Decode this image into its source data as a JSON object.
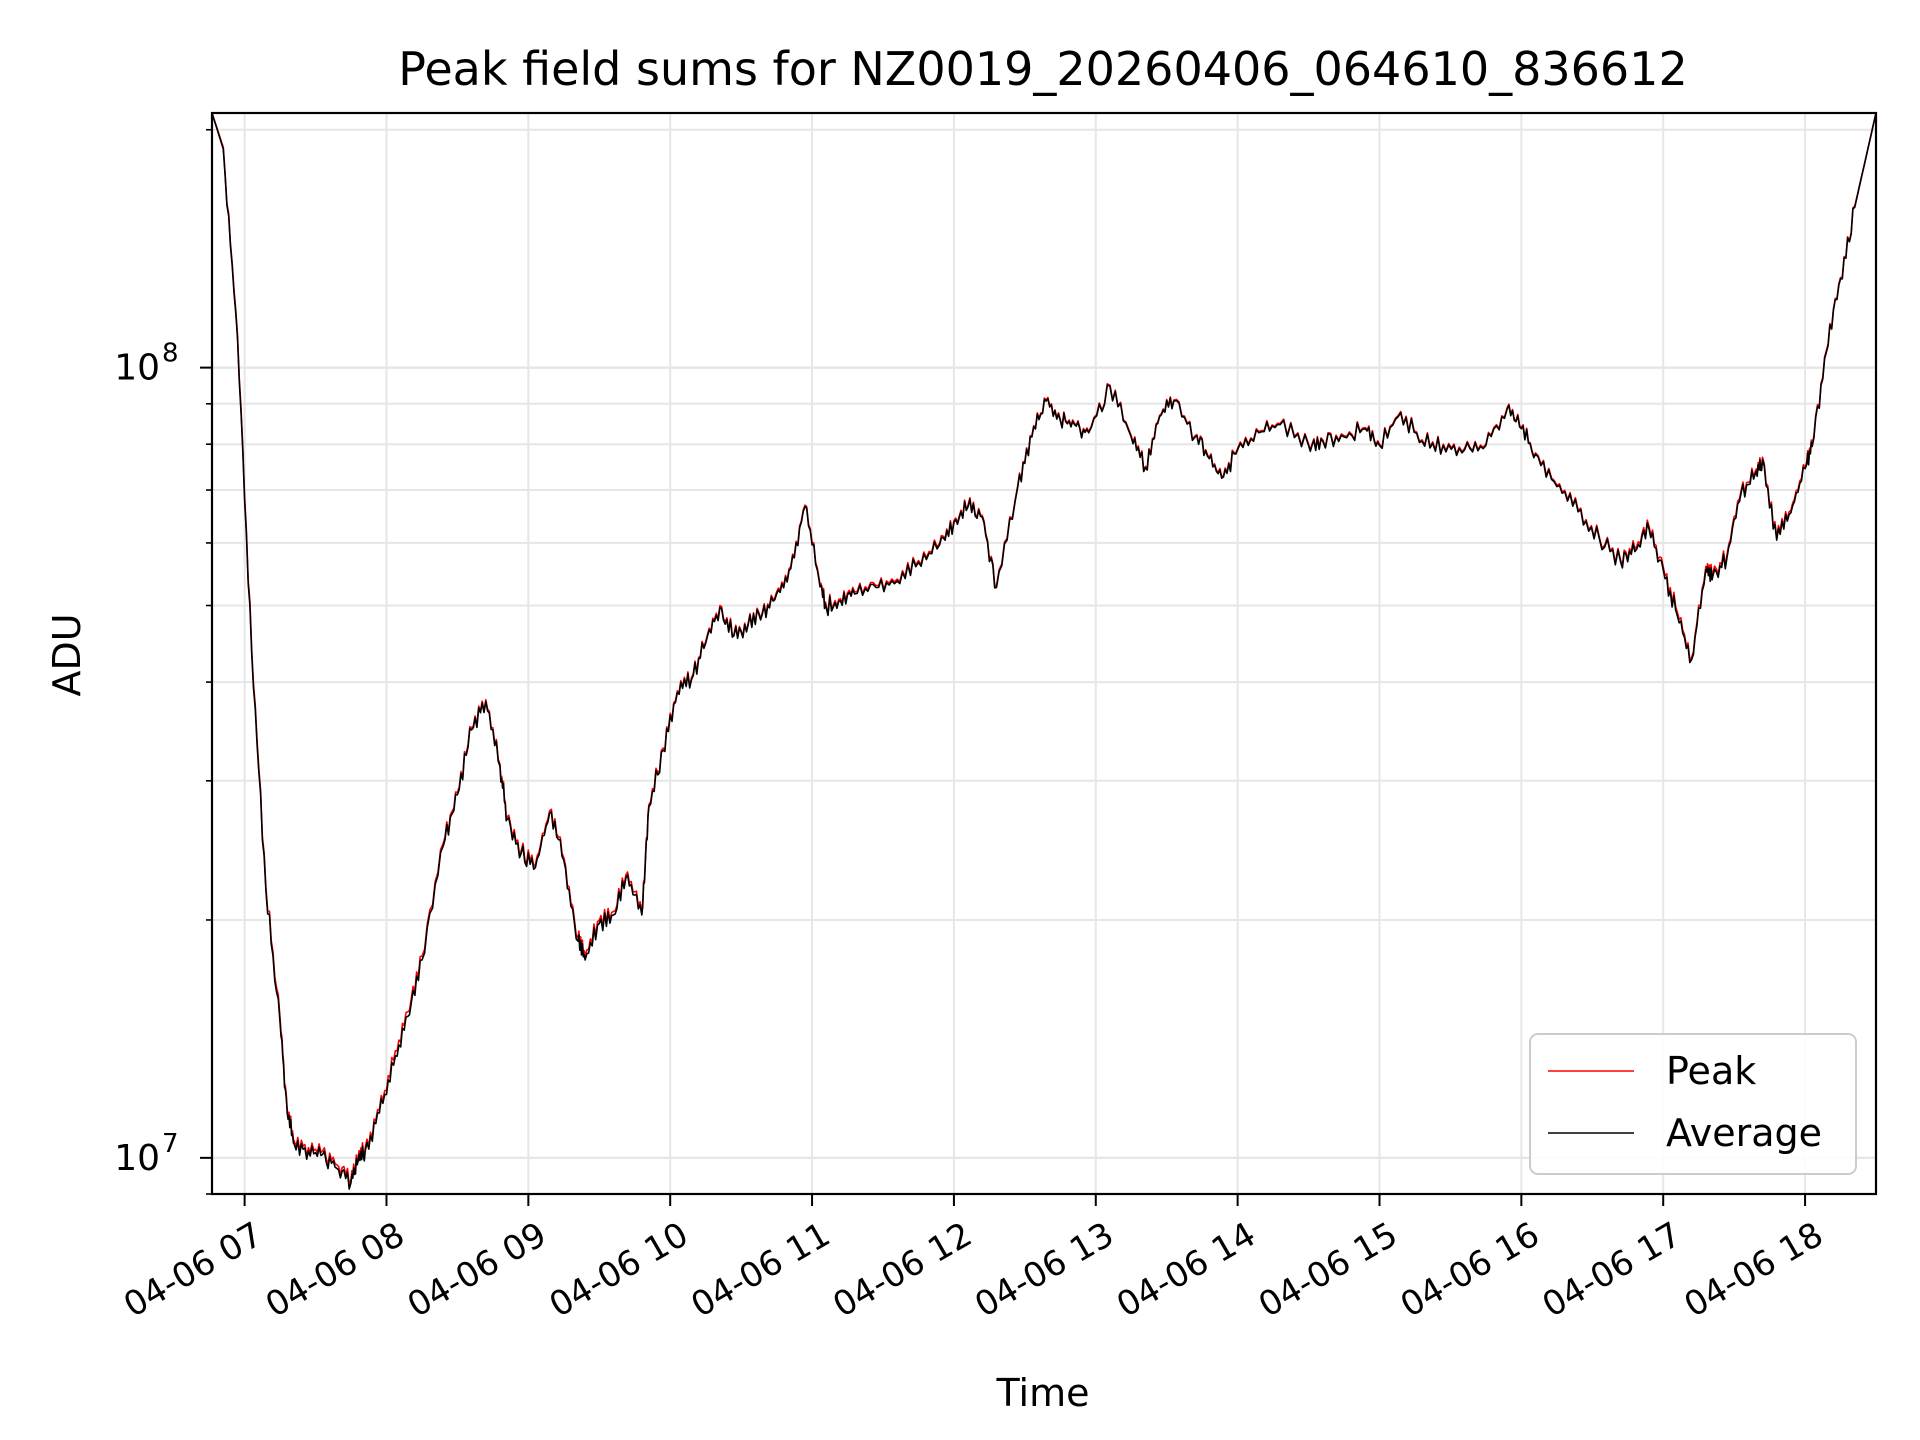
{
  "colors": {
    "peak": "#ff0000",
    "average": "#000000",
    "grid": "#e6e6e6",
    "axes": "#000000"
  },
  "chart_data": {
    "type": "line",
    "title": "Peak field sums for NZ0019_20260406_064610_836612",
    "xlabel": "Time",
    "ylabel": "ADU",
    "yscale": "log",
    "ylim": [
      9000000,
      210000000
    ],
    "xlim": [
      6.77,
      18.5
    ],
    "grid": true,
    "legend_position": "lower-right",
    "x_tick_labels": [
      "04-06 07",
      "04-06 08",
      "04-06 09",
      "04-06 10",
      "04-06 11",
      "04-06 12",
      "04-06 13",
      "04-06 14",
      "04-06 15",
      "04-06 16",
      "04-06 17",
      "04-06 18"
    ],
    "x_tick_values": [
      7,
      8,
      9,
      10,
      11,
      12,
      13,
      14,
      15,
      16,
      17,
      18
    ],
    "y_major_ticks": [
      {
        "value": 10000000,
        "base": "10",
        "exp": "7"
      },
      {
        "value": 100000000,
        "base": "10",
        "exp": "8"
      }
    ],
    "y_minor_ticks": [
      9000000,
      20000000,
      30000000,
      40000000,
      50000000,
      60000000,
      70000000,
      80000000,
      90000000,
      200000000
    ],
    "x_unit": "hour of 2026-04-06",
    "x": [
      6.77,
      6.85,
      6.95,
      7.05,
      7.15,
      7.25,
      7.3,
      7.35,
      7.45,
      7.55,
      7.65,
      7.75,
      7.8,
      7.85,
      7.95,
      8.05,
      8.15,
      8.25,
      8.4,
      8.5,
      8.6,
      8.7,
      8.8,
      8.85,
      8.95,
      9.05,
      9.15,
      9.25,
      9.35,
      9.4,
      9.5,
      9.6,
      9.7,
      9.8,
      9.85,
      9.95,
      10.05,
      10.15,
      10.25,
      10.35,
      10.45,
      10.55,
      10.65,
      10.75,
      10.85,
      10.95,
      11.05,
      11.1,
      11.2,
      11.3,
      11.45,
      11.6,
      11.75,
      11.9,
      12.0,
      12.1,
      12.2,
      12.3,
      12.45,
      12.55,
      12.65,
      12.75,
      12.85,
      12.95,
      13.1,
      13.25,
      13.35,
      13.45,
      13.55,
      13.7,
      13.8,
      13.9,
      14.0,
      14.15,
      14.3,
      14.5,
      14.6,
      14.75,
      14.9,
      15.0,
      15.15,
      15.3,
      15.45,
      15.6,
      15.75,
      15.9,
      16.0,
      16.1,
      16.25,
      16.4,
      16.55,
      16.7,
      16.8,
      16.9,
      17.0,
      17.1,
      17.2,
      17.3,
      17.35,
      17.45,
      17.55,
      17.65,
      17.7,
      17.8,
      17.9,
      18.0,
      18.05,
      18.15,
      18.25,
      18.35,
      18.5
    ],
    "series": [
      {
        "name": "Peak",
        "color": "#ff0000",
        "values": [
          210000000,
          190000000,
          110000000,
          44000000,
          22000000,
          15000000,
          11500000,
          10500000,
          10300000,
          10200000,
          9800000,
          9400000,
          10000000,
          10300000,
          11500000,
          13300000,
          15300000,
          18000000,
          25000000,
          29000000,
          35000000,
          38000000,
          31500000,
          27000000,
          24500000,
          23500000,
          27500000,
          24000000,
          19000000,
          18000000,
          20000000,
          20500000,
          23000000,
          20500000,
          28000000,
          33000000,
          39000000,
          40500000,
          45000000,
          50000000,
          46000000,
          47500000,
          49000000,
          52000000,
          56000000,
          67000000,
          54000000,
          50000000,
          51000000,
          52000000,
          53000000,
          54000000,
          57000000,
          60000000,
          64000000,
          67000000,
          65000000,
          53000000,
          71000000,
          82000000,
          91000000,
          86000000,
          85000000,
          83000000,
          95000000,
          82000000,
          75000000,
          87000000,
          91000000,
          82000000,
          77000000,
          73000000,
          79000000,
          83000000,
          85000000,
          80000000,
          81000000,
          82000000,
          84000000,
          80000000,
          88000000,
          81000000,
          80000000,
          79000000,
          80000000,
          89000000,
          84000000,
          78000000,
          71000000,
          66000000,
          61000000,
          57000000,
          59000000,
          63000000,
          56000000,
          49000000,
          43000000,
          56000000,
          55000000,
          58000000,
          70000000,
          74000000,
          77000000,
          61000000,
          66000000,
          75000000,
          80000000,
          105000000,
          130000000,
          160000000,
          210000000
        ]
      },
      {
        "name": "Average",
        "color": "#000000",
        "values": [
          210000000,
          189000000,
          109000000,
          43500000,
          21800000,
          14800000,
          11400000,
          10400000,
          10200000,
          10100000,
          9700000,
          9300000,
          9900000,
          10200000,
          11400000,
          13100000,
          15100000,
          17800000,
          24800000,
          28800000,
          34800000,
          37800000,
          31300000,
          26800000,
          24300000,
          23300000,
          27300000,
          23800000,
          18800000,
          17800000,
          19800000,
          20300000,
          22800000,
          20300000,
          27800000,
          32800000,
          38800000,
          40300000,
          44800000,
          49700000,
          45800000,
          47300000,
          48800000,
          51700000,
          55700000,
          66700000,
          53700000,
          49700000,
          50700000,
          51700000,
          52700000,
          53700000,
          56700000,
          59700000,
          63700000,
          66700000,
          64700000,
          52700000,
          70700000,
          81700000,
          90700000,
          85700000,
          84700000,
          82700000,
          94700000,
          81700000,
          74700000,
          86700000,
          90700000,
          81700000,
          76700000,
          72700000,
          78700000,
          82700000,
          84700000,
          79700000,
          80700000,
          81700000,
          83700000,
          79700000,
          87700000,
          80700000,
          79700000,
          78700000,
          79700000,
          88700000,
          83700000,
          77700000,
          70700000,
          65700000,
          60700000,
          56700000,
          58500000,
          62500000,
          55500000,
          48500000,
          42700000,
          55500000,
          54500000,
          57500000,
          69500000,
          73500000,
          76500000,
          60500000,
          65500000,
          74500000,
          79500000,
          104500000,
          129500000,
          159500000,
          210000000
        ]
      }
    ]
  }
}
